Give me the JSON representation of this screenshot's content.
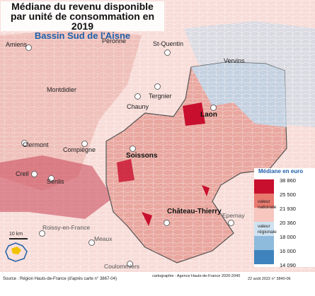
{
  "title": {
    "line1": "Médiane du revenu disponible",
    "line2": "par unité de consommation en 2019",
    "line3": "Bassin Sud de l'Aisne"
  },
  "cities": [
    {
      "name": "Amiens",
      "style": "normal"
    },
    {
      "name": "Péronne",
      "style": "normal"
    },
    {
      "name": "St-Quentin",
      "style": "normal"
    },
    {
      "name": "Vervins",
      "style": "normal"
    },
    {
      "name": "Montdidier",
      "style": "normal"
    },
    {
      "name": "Tergnier",
      "style": "normal"
    },
    {
      "name": "Chauny",
      "style": "normal"
    },
    {
      "name": "Laon",
      "style": "bold"
    },
    {
      "name": "Clermont",
      "style": "normal"
    },
    {
      "name": "Compiègne",
      "style": "normal"
    },
    {
      "name": "Soissons",
      "style": "bold"
    },
    {
      "name": "Creil",
      "style": "normal"
    },
    {
      "name": "Senlis",
      "style": "normal"
    },
    {
      "name": "Château-Thierry",
      "style": "bold"
    },
    {
      "name": "Epernay",
      "style": "grey"
    },
    {
      "name": "Roissy-en-France",
      "style": "grey"
    },
    {
      "name": "Meaux",
      "style": "grey"
    },
    {
      "name": "Coulommiers",
      "style": "grey"
    }
  ],
  "legend": {
    "title": "Médiane en euro",
    "breaks": [
      "38 860",
      "25 500",
      "21 930",
      "20 360",
      "18 000",
      "16 000",
      "14 090"
    ],
    "colors": [
      "#c8102e",
      "#e8796f",
      "#f6c6bf",
      "#cfe2f1",
      "#8ebbdc",
      "#3f83bd"
    ],
    "note_national": "valeur\nnationale",
    "note_regional": "valeur\nrégionale"
  },
  "scale": "10 km",
  "logo_text": "Région Hauts-de-France",
  "footer": {
    "source": "Source : Région Hauts-de-France (d'après carte n° 3867-04)",
    "credit": "cartographie : Agence Hauts-de-France 2020-2040",
    "date": "22 août 2022 n° 3840-06"
  }
}
